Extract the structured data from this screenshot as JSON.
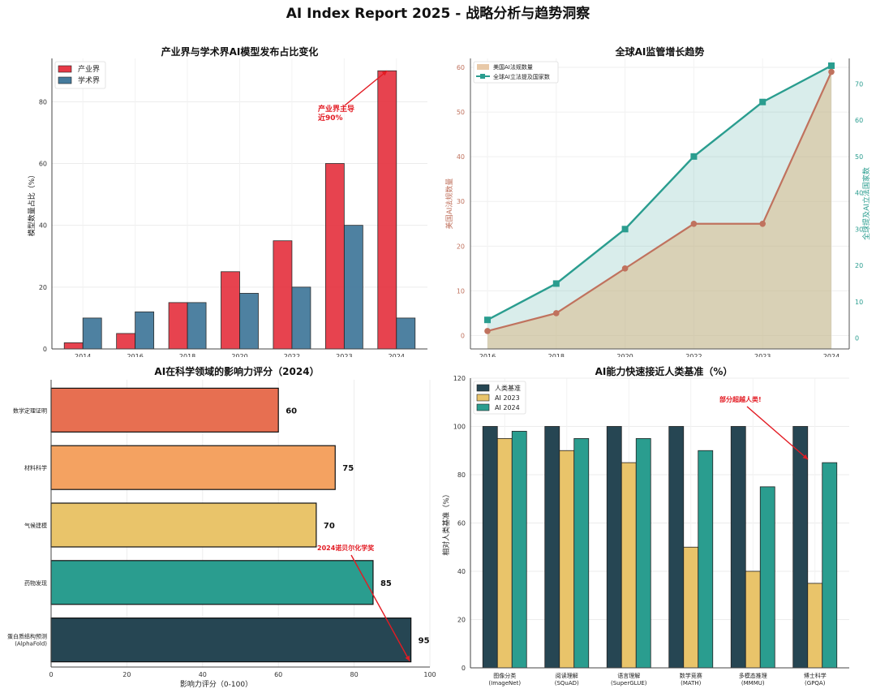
{
  "figure": {
    "title": "AI Index Report 2025 - 战略分析与趋势洞察"
  },
  "colors": {
    "industry": "#e63946",
    "academia": "#457b9d",
    "annotation": "#e31b23",
    "us_laws": "#c0725e",
    "us_fill": "#e8c9a8",
    "global": "#2a9d8f",
    "dark": "#264653",
    "yellow": "#e9c46a",
    "teal": "#2a9d8f",
    "orange": "#f4a261",
    "coral": "#e76f51"
  },
  "chart_data": [
    {
      "id": "industry-academia",
      "type": "bar",
      "title": "产业界与学术界AI模型发布占比变化",
      "xlabel": "",
      "ylabel": "模型数量占比（%）",
      "categories": [
        "2014",
        "2016",
        "2018",
        "2020",
        "2022",
        "2023",
        "2024"
      ],
      "series": [
        {
          "name": "产业界",
          "values": [
            2,
            5,
            15,
            25,
            35,
            60,
            90
          ]
        },
        {
          "name": "学术界",
          "values": [
            10,
            12,
            15,
            18,
            20,
            40,
            10
          ]
        }
      ],
      "ylim": [
        0,
        94
      ],
      "yticks": [
        0,
        20,
        40,
        60,
        80
      ],
      "annotation": {
        "lines": [
          "产业界主导",
          "近90%"
        ],
        "target_category": "2024",
        "target_value": 90
      },
      "legend": "top-left"
    },
    {
      "id": "regulation",
      "type": "line",
      "title": "全球AI监管增长趋势",
      "categories": [
        "2016",
        "2018",
        "2020",
        "2022",
        "2023",
        "2024"
      ],
      "series": [
        {
          "name": "美国AI法规数量",
          "axis": "left",
          "values": [
            1,
            5,
            15,
            25,
            25,
            59
          ]
        },
        {
          "name": "全球AI立法提及国家数",
          "axis": "right",
          "values": [
            5,
            15,
            30,
            50,
            65,
            75
          ]
        }
      ],
      "ylabel_left": "美国AI法规数量",
      "ylabel_right": "全球提及AI立法国家数",
      "ylim_left": [
        -3,
        62
      ],
      "ylim_right": [
        -3,
        77
      ],
      "yticks_left": [
        0,
        10,
        20,
        30,
        40,
        50,
        60
      ],
      "yticks_right": [
        0,
        10,
        20,
        30,
        40,
        50,
        60,
        70
      ],
      "legend": "top-left"
    },
    {
      "id": "science-impact",
      "type": "bar",
      "orientation": "horizontal",
      "title": "AI在科学领域的影响力评分（2024）",
      "xlabel": "影响力评分（0-100）",
      "categories": [
        "数学定理证明",
        "材料科学",
        "气候建模",
        "药物发现",
        "蛋白质结构预测\n(AlphaFold)"
      ],
      "values": [
        60,
        75,
        70,
        85,
        95
      ],
      "xlim": [
        0,
        100
      ],
      "xticks": [
        0,
        20,
        40,
        60,
        80,
        100
      ],
      "annotation": {
        "text": "2024诺贝尔化学奖",
        "target_category_index": 4
      }
    },
    {
      "id": "human-baseline",
      "type": "bar",
      "title": "AI能力快速接近人类基准（%）",
      "ylabel": "相对人类基准（%）",
      "categories": [
        "图像分类\n(ImageNet)",
        "阅读理解\n(SQuAD)",
        "语言理解\n(SuperGLUE)",
        "数学竞赛\n(MATH)",
        "多模态推理\n(MMMU)",
        "博士科学\n(GPQA)"
      ],
      "series": [
        {
          "name": "人类基准",
          "values": [
            100,
            100,
            100,
            100,
            100,
            100
          ]
        },
        {
          "name": "AI 2023",
          "values": [
            95,
            90,
            85,
            50,
            40,
            35
          ]
        },
        {
          "name": "AI 2024",
          "values": [
            98,
            95,
            95,
            90,
            75,
            85
          ]
        }
      ],
      "ylim": [
        0,
        120
      ],
      "yticks": [
        0,
        20,
        40,
        60,
        80,
        100,
        120
      ],
      "annotation": {
        "text": "部分超越人类!",
        "target_category_index": 5
      },
      "legend": "top-left"
    }
  ]
}
